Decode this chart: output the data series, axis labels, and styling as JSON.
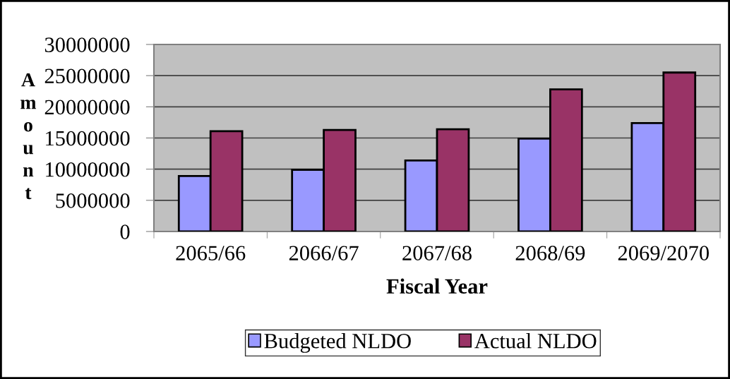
{
  "chart_data": {
    "type": "bar",
    "xlabel": "Fiscal Year",
    "ylabel": "Amount",
    "categories": [
      "2065/66",
      "2066/67",
      "2067/68",
      "2068/69",
      "2069/2070"
    ],
    "series": [
      {
        "name": "Budgeted NLDO",
        "color": "#9999ff",
        "values": [
          8900000,
          9900000,
          11400000,
          14900000,
          17400000
        ]
      },
      {
        "name": "Actual NLDO",
        "color": "#993366",
        "values": [
          16100000,
          16300000,
          16400000,
          22800000,
          25500000
        ]
      }
    ],
    "ylim": [
      0,
      30000000
    ],
    "yticks": [
      0,
      5000000,
      10000000,
      15000000,
      20000000,
      25000000,
      30000000
    ],
    "grid": "y",
    "legend": "bottom"
  }
}
